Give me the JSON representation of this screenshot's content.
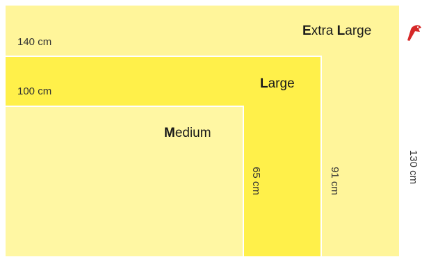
{
  "sizes": [
    {
      "id": "extra-large",
      "initial_1": "E",
      "rest_1": "xtra ",
      "initial_2": "L",
      "rest_2": "arge",
      "width_label": "140 cm",
      "height_label": "130 cm"
    },
    {
      "id": "large",
      "initial_1": "L",
      "rest_1": "arge",
      "width_label": "100 cm",
      "height_label": "91 cm"
    },
    {
      "id": "medium",
      "initial_1": "M",
      "rest_1": "edium",
      "height_label": "65 cm"
    }
  ],
  "colors": {
    "extra_large_fill": "#fff59a",
    "large_fill": "#fff04a",
    "medium_fill": "#fff7a3",
    "logo_red": "#d62828"
  },
  "icons": {
    "logo": "red-bird-icon"
  }
}
